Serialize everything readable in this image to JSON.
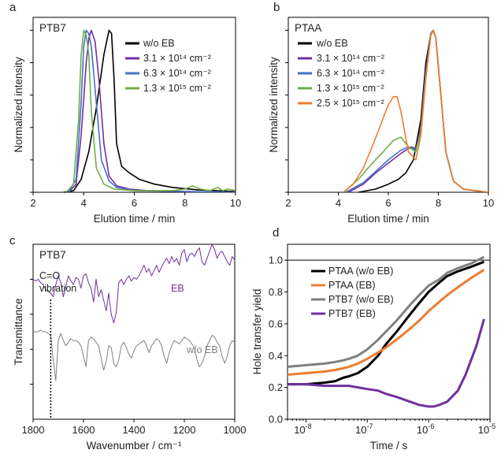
{
  "panels": [
    {
      "id": "a",
      "letter": "a",
      "tag": "PTB7"
    },
    {
      "id": "b",
      "letter": "b",
      "tag": "PTAA"
    },
    {
      "id": "c",
      "letter": "c",
      "tag": "PTB7"
    },
    {
      "id": "d",
      "letter": "d",
      "tag": ""
    }
  ],
  "chart_data": [
    {
      "id": "a",
      "type": "line",
      "title": "",
      "tag": "PTB7",
      "xlabel": "Elution time / min",
      "ylabel": "Normalized intensity",
      "xlim": [
        2,
        10
      ],
      "ylim": [
        0,
        1.08
      ],
      "xticks": [
        2,
        4,
        6,
        8,
        10
      ],
      "yticks": [
        0,
        0.2,
        0.4,
        0.6,
        0.8,
        1.0
      ],
      "ytick_labels_shown": false,
      "legend": "top-right",
      "series": [
        {
          "name": "w/o EB",
          "color": "#000000",
          "x": [
            3.2,
            3.6,
            3.9,
            4.2,
            4.5,
            4.8,
            5.0,
            5.1,
            5.2,
            5.3,
            5.5,
            5.8,
            6.2,
            6.8,
            7.5,
            8.5,
            10
          ],
          "y": [
            0,
            0.01,
            0.08,
            0.25,
            0.52,
            0.85,
            1.0,
            0.98,
            0.7,
            0.3,
            0.16,
            0.12,
            0.08,
            0.05,
            0.03,
            0.015,
            0.005
          ]
        },
        {
          "name": "3.1 × 10¹⁴ cm⁻²",
          "color": "#7030a0",
          "x": [
            3.4,
            3.7,
            3.9,
            4.1,
            4.2,
            4.3,
            4.45,
            4.6,
            4.8,
            5.0,
            5.3,
            5.8,
            6.5,
            8,
            10
          ],
          "y": [
            0,
            0.05,
            0.35,
            0.8,
            0.95,
            1.0,
            0.93,
            0.7,
            0.3,
            0.1,
            0.04,
            0.02,
            0.01,
            0.005,
            0
          ]
        },
        {
          "name": "6.3 × 10¹⁴ cm⁻²",
          "color": "#4472c4",
          "x": [
            3.4,
            3.7,
            3.9,
            4.0,
            4.1,
            4.2,
            4.3,
            4.5,
            4.7,
            5.0,
            5.3,
            6,
            8,
            10
          ],
          "y": [
            0,
            0.08,
            0.55,
            0.9,
            1.0,
            0.98,
            0.9,
            0.55,
            0.2,
            0.07,
            0.03,
            0.01,
            0.005,
            0
          ]
        },
        {
          "name": "1.3 × 10¹⁵ cm⁻²",
          "color": "#70ad47",
          "x": [
            3.3,
            3.6,
            3.8,
            3.9,
            4.0,
            4.1,
            4.2,
            4.3,
            4.5,
            4.8,
            5.2,
            6,
            6.8,
            7.5,
            8.0,
            8.3,
            8.6,
            9.0,
            9.3,
            9.5,
            9.7,
            10
          ],
          "y": [
            0,
            0.05,
            0.45,
            0.85,
            1.0,
            0.97,
            0.85,
            0.5,
            0.15,
            0.05,
            0.02,
            0.01,
            0.01,
            0.01,
            0.02,
            0.04,
            0.02,
            0.01,
            0.03,
            0.01,
            0.02,
            0.01
          ]
        }
      ]
    },
    {
      "id": "b",
      "type": "line",
      "title": "",
      "tag": "PTAA",
      "xlabel": "Elution time / min",
      "ylabel": "Normalized intensity",
      "xlim": [
        2,
        10
      ],
      "ylim": [
        0,
        1.08
      ],
      "xticks": [
        2,
        4,
        6,
        8,
        10
      ],
      "yticks": [
        0,
        0.2,
        0.4,
        0.6,
        0.8,
        1.0
      ],
      "ytick_labels_shown": false,
      "legend": "top-left",
      "series": [
        {
          "name": "w/o EB",
          "color": "#000000",
          "x": [
            4.8,
            5.5,
            6.0,
            6.4,
            6.7,
            7.0,
            7.3,
            7.5,
            7.7,
            7.8,
            7.9,
            8.1,
            8.3,
            8.6,
            9,
            10
          ],
          "y": [
            0,
            0.02,
            0.05,
            0.08,
            0.12,
            0.2,
            0.45,
            0.8,
            0.98,
            1.0,
            0.95,
            0.6,
            0.25,
            0.07,
            0.02,
            0
          ]
        },
        {
          "name": "3.1 × 10¹⁴ cm⁻²",
          "color": "#7030a0",
          "x": [
            4.4,
            5.0,
            5.5,
            6.0,
            6.5,
            6.9,
            7.1,
            7.3,
            7.5,
            7.7,
            7.8,
            7.9,
            8.1,
            8.3,
            8.6,
            9,
            10
          ],
          "y": [
            0,
            0.05,
            0.12,
            0.18,
            0.24,
            0.28,
            0.27,
            0.4,
            0.75,
            0.98,
            1.0,
            0.95,
            0.6,
            0.25,
            0.07,
            0.02,
            0
          ]
        },
        {
          "name": "6.3 × 10¹⁴ cm⁻²",
          "color": "#4472c4",
          "x": [
            4.3,
            5.0,
            5.5,
            6.0,
            6.5,
            6.8,
            7.1,
            7.3,
            7.5,
            7.7,
            7.8,
            7.9,
            8.1,
            8.3,
            8.6,
            9,
            10
          ],
          "y": [
            0,
            0.06,
            0.13,
            0.2,
            0.26,
            0.28,
            0.26,
            0.38,
            0.74,
            0.98,
            1.0,
            0.95,
            0.6,
            0.25,
            0.07,
            0.02,
            0
          ]
        },
        {
          "name": "1.3 × 10¹⁵ cm⁻²",
          "color": "#70ad47",
          "x": [
            4.2,
            4.8,
            5.3,
            5.8,
            6.2,
            6.5,
            6.8,
            7.1,
            7.3,
            7.5,
            7.7,
            7.8,
            7.9,
            8.1,
            8.3,
            8.6,
            9,
            10
          ],
          "y": [
            0,
            0.08,
            0.17,
            0.25,
            0.32,
            0.34,
            0.28,
            0.25,
            0.38,
            0.72,
            0.97,
            1.0,
            0.95,
            0.6,
            0.25,
            0.07,
            0.02,
            0
          ]
        },
        {
          "name": "2.5 × 10¹⁵ cm⁻²",
          "color": "#ed7d31",
          "x": [
            4.2,
            4.6,
            5.0,
            5.4,
            5.8,
            6.0,
            6.2,
            6.35,
            6.5,
            6.8,
            7.1,
            7.3,
            7.5,
            7.7,
            7.8,
            7.9,
            8.1,
            8.3,
            8.6,
            9,
            10
          ],
          "y": [
            0,
            0.05,
            0.15,
            0.3,
            0.46,
            0.54,
            0.59,
            0.59,
            0.5,
            0.25,
            0.2,
            0.35,
            0.7,
            0.97,
            1.0,
            0.95,
            0.6,
            0.25,
            0.07,
            0.02,
            0
          ]
        }
      ]
    },
    {
      "id": "c",
      "type": "line",
      "title": "",
      "tag": "PTB7",
      "xlabel": "Wavenumber / cm⁻¹",
      "ylabel": "Transmittance",
      "xlim": [
        1800,
        1000
      ],
      "ylim": [
        0,
        1
      ],
      "xticks": [
        1800,
        1600,
        1400,
        1200,
        1000
      ],
      "yticks": [
        0.2,
        0.4,
        0.6,
        0.8
      ],
      "ytick_labels_shown": false,
      "annotation": {
        "text_line1": "C=O",
        "text_line2": "vibration",
        "x": 1730
      },
      "series": [
        {
          "name": "EB",
          "color": "#7030a0",
          "x": [
            1800,
            1790,
            1780,
            1770,
            1760,
            1750,
            1740,
            1730,
            1720,
            1710,
            1700,
            1690,
            1680,
            1670,
            1660,
            1650,
            1640,
            1630,
            1620,
            1610,
            1600,
            1590,
            1580,
            1570,
            1560,
            1550,
            1540,
            1530,
            1520,
            1510,
            1500,
            1490,
            1480,
            1470,
            1460,
            1450,
            1440,
            1430,
            1420,
            1410,
            1400,
            1390,
            1380,
            1370,
            1360,
            1350,
            1340,
            1330,
            1320,
            1310,
            1300,
            1290,
            1280,
            1270,
            1260,
            1250,
            1240,
            1230,
            1220,
            1210,
            1200,
            1190,
            1180,
            1170,
            1160,
            1150,
            1140,
            1130,
            1120,
            1110,
            1100,
            1090,
            1080,
            1070,
            1060,
            1050,
            1040,
            1030,
            1020,
            1010,
            1000
          ],
          "y": [
            0.8,
            0.79,
            0.8,
            0.78,
            0.77,
            0.74,
            0.73,
            0.72,
            0.7,
            0.77,
            0.82,
            0.78,
            0.7,
            0.76,
            0.82,
            0.79,
            0.77,
            0.81,
            0.8,
            0.75,
            0.82,
            0.83,
            0.78,
            0.75,
            0.67,
            0.8,
            0.7,
            0.74,
            0.68,
            0.62,
            0.72,
            0.6,
            0.55,
            0.61,
            0.78,
            0.8,
            0.77,
            0.8,
            0.82,
            0.79,
            0.81,
            0.8,
            0.82,
            0.85,
            0.88,
            0.84,
            0.86,
            0.82,
            0.85,
            0.88,
            0.84,
            0.87,
            0.9,
            0.92,
            0.89,
            0.93,
            0.9,
            0.92,
            0.88,
            0.95,
            0.97,
            0.9,
            0.94,
            0.95,
            0.93,
            0.96,
            0.98,
            0.9,
            0.88,
            0.92,
            0.96,
            1.0,
            0.97,
            0.92,
            0.95,
            0.96,
            0.93,
            0.9,
            0.88,
            0.93,
            0.91
          ]
        },
        {
          "name": "w/o EB",
          "color": "#808080",
          "x": [
            1800,
            1790,
            1780,
            1770,
            1760,
            1750,
            1740,
            1730,
            1720,
            1710,
            1700,
            1690,
            1680,
            1670,
            1660,
            1650,
            1640,
            1630,
            1620,
            1610,
            1600,
            1590,
            1580,
            1570,
            1560,
            1550,
            1540,
            1530,
            1520,
            1510,
            1500,
            1490,
            1480,
            1470,
            1460,
            1450,
            1440,
            1430,
            1420,
            1410,
            1400,
            1390,
            1380,
            1370,
            1360,
            1350,
            1340,
            1330,
            1320,
            1310,
            1300,
            1290,
            1280,
            1270,
            1260,
            1250,
            1240,
            1230,
            1220,
            1210,
            1200,
            1190,
            1180,
            1170,
            1160,
            1150,
            1140,
            1130,
            1120,
            1110,
            1100,
            1090,
            1080,
            1070,
            1060,
            1050,
            1040,
            1030,
            1020,
            1010,
            1000
          ],
          "y": [
            0.5,
            0.5,
            0.5,
            0.51,
            0.5,
            0.5,
            0.49,
            0.48,
            0.34,
            0.22,
            0.45,
            0.49,
            0.45,
            0.42,
            0.44,
            0.46,
            0.45,
            0.45,
            0.44,
            0.42,
            0.36,
            0.3,
            0.45,
            0.47,
            0.46,
            0.44,
            0.42,
            0.35,
            0.28,
            0.33,
            0.42,
            0.41,
            0.32,
            0.3,
            0.34,
            0.42,
            0.44,
            0.41,
            0.37,
            0.35,
            0.39,
            0.42,
            0.43,
            0.44,
            0.45,
            0.42,
            0.38,
            0.42,
            0.44,
            0.46,
            0.45,
            0.42,
            0.36,
            0.32,
            0.38,
            0.42,
            0.45,
            0.44,
            0.43,
            0.45,
            0.47,
            0.46,
            0.45,
            0.43,
            0.41,
            0.34,
            0.3,
            0.32,
            0.36,
            0.42,
            0.45,
            0.48,
            0.47,
            0.44,
            0.42,
            0.36,
            0.32,
            0.36,
            0.42,
            0.45,
            0.44
          ]
        }
      ]
    },
    {
      "id": "d",
      "type": "line",
      "title": "",
      "xlabel": "Time / s",
      "ylabel": "Hole transfer yield",
      "xscale": "log",
      "xlim": [
        5e-09,
        1e-05
      ],
      "ylim": [
        0,
        1.1
      ],
      "xtick_values": [
        1e-08,
        1e-07,
        1e-06,
        1e-05
      ],
      "xtick_labels": [
        "10",
        "10",
        "10",
        "10"
      ],
      "xtick_exponents": [
        "-8",
        "-7",
        "-6",
        "-5"
      ],
      "yticks": [
        0.0,
        0.2,
        0.4,
        0.6,
        0.8,
        1.0
      ],
      "ytick_labels": [
        "0.0",
        "0.2",
        "0.4",
        "0.6",
        "0.8",
        "1.0"
      ],
      "reference_line": 1.0,
      "legend": "top-left",
      "series": [
        {
          "name": "PTAA (w/o EB)",
          "color": "#000000",
          "x": [
            5e-09,
            1e-08,
            2e-08,
            3e-08,
            4e-08,
            5e-08,
            7e-08,
            1e-07,
            1.5e-07,
            2e-07,
            3e-07,
            5e-07,
            7e-07,
            1e-06,
            1.5e-06,
            2e-06,
            3e-06,
            5e-06,
            8e-06
          ],
          "y": [
            0.22,
            0.22,
            0.23,
            0.24,
            0.26,
            0.27,
            0.29,
            0.33,
            0.4,
            0.47,
            0.55,
            0.66,
            0.73,
            0.8,
            0.86,
            0.9,
            0.93,
            0.96,
            0.99
          ]
        },
        {
          "name": "PTAA (EB)",
          "color": "#ed7d31",
          "x": [
            5e-09,
            1e-08,
            2e-08,
            3e-08,
            4e-08,
            5e-08,
            7e-08,
            1e-07,
            1.5e-07,
            2e-07,
            3e-07,
            5e-07,
            7e-07,
            1e-06,
            1.5e-06,
            2e-06,
            3e-06,
            5e-06,
            8e-06
          ],
          "y": [
            0.28,
            0.29,
            0.3,
            0.31,
            0.32,
            0.33,
            0.35,
            0.38,
            0.42,
            0.45,
            0.5,
            0.57,
            0.62,
            0.68,
            0.74,
            0.78,
            0.83,
            0.89,
            0.94
          ]
        },
        {
          "name": "PTB7 (w/o EB)",
          "color": "#7f7f7f",
          "x": [
            5e-09,
            1e-08,
            2e-08,
            3e-08,
            4e-08,
            5e-08,
            7e-08,
            1e-07,
            1.5e-07,
            2e-07,
            3e-07,
            5e-07,
            7e-07,
            1e-06,
            1.5e-06,
            2e-06,
            3e-06,
            5e-06,
            8e-06
          ],
          "y": [
            0.33,
            0.34,
            0.35,
            0.36,
            0.37,
            0.38,
            0.4,
            0.44,
            0.5,
            0.55,
            0.62,
            0.72,
            0.78,
            0.84,
            0.88,
            0.92,
            0.95,
            0.98,
            1.02
          ]
        },
        {
          "name": "PTB7 (EB)",
          "color": "#7030a0",
          "x": [
            5e-09,
            1e-08,
            2e-08,
            3e-08,
            5e-08,
            7e-08,
            1e-07,
            1.5e-07,
            2e-07,
            3e-07,
            5e-07,
            7e-07,
            1e-06,
            1.2e-06,
            1.5e-06,
            2e-06,
            3e-06,
            4e-06,
            5e-06,
            6e-06,
            7e-06,
            8e-06
          ],
          "y": [
            0.22,
            0.22,
            0.21,
            0.21,
            0.21,
            0.2,
            0.19,
            0.18,
            0.16,
            0.14,
            0.11,
            0.09,
            0.08,
            0.08,
            0.09,
            0.11,
            0.18,
            0.28,
            0.38,
            0.46,
            0.55,
            0.63
          ]
        }
      ]
    }
  ]
}
